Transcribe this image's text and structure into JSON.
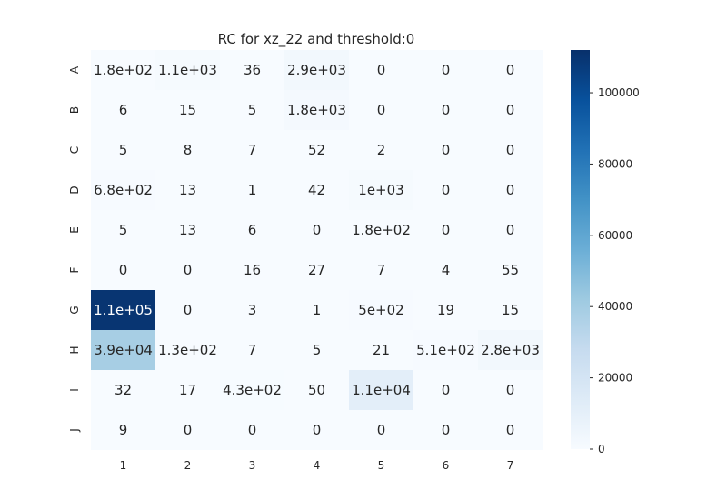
{
  "chart_data": {
    "type": "heatmap",
    "title": "RC  for xz_22 and threshold:0",
    "x_categories": [
      "1",
      "2",
      "3",
      "4",
      "5",
      "6",
      "7"
    ],
    "y_categories": [
      "A",
      "B",
      "C",
      "D",
      "E",
      "F",
      "G",
      "H",
      "I",
      "J"
    ],
    "values": [
      [
        180,
        1100,
        36,
        2900,
        0,
        0,
        0
      ],
      [
        6,
        15,
        5,
        1800,
        0,
        0,
        0
      ],
      [
        5,
        8,
        7,
        52,
        2,
        0,
        0
      ],
      [
        680,
        13,
        1,
        42,
        1000,
        0,
        0
      ],
      [
        5,
        13,
        6,
        0,
        180,
        0,
        0
      ],
      [
        0,
        0,
        16,
        27,
        7,
        4,
        55
      ],
      [
        110000,
        0,
        3,
        1,
        500,
        19,
        15
      ],
      [
        39000,
        130,
        7,
        5,
        21,
        510,
        2800
      ],
      [
        32,
        17,
        430,
        50,
        11000,
        0,
        0
      ],
      [
        9,
        0,
        0,
        0,
        0,
        0,
        0
      ]
    ],
    "annotations": [
      [
        "1.8e+02",
        "1.1e+03",
        "36",
        "2.9e+03",
        "0",
        "0",
        "0"
      ],
      [
        "6",
        "15",
        "5",
        "1.8e+03",
        "0",
        "0",
        "0"
      ],
      [
        "5",
        "8",
        "7",
        "52",
        "2",
        "0",
        "0"
      ],
      [
        "6.8e+02",
        "13",
        "1",
        "42",
        "1e+03",
        "0",
        "0"
      ],
      [
        "5",
        "13",
        "6",
        "0",
        "1.8e+02",
        "0",
        "0"
      ],
      [
        "0",
        "0",
        "16",
        "27",
        "7",
        "4",
        "55"
      ],
      [
        "1.1e+05",
        "0",
        "3",
        "1",
        "5e+02",
        "19",
        "15"
      ],
      [
        "3.9e+04",
        "1.3e+02",
        "7",
        "5",
        "21",
        "5.1e+02",
        "2.8e+03"
      ],
      [
        "32",
        "17",
        "4.3e+02",
        "50",
        "1.1e+04",
        "0",
        "0"
      ],
      [
        "9",
        "0",
        "0",
        "0",
        "0",
        "0",
        "0"
      ]
    ],
    "colormap": "Blues",
    "vmin": 0,
    "vmax": 112000,
    "colorbar": {
      "ticks": [
        0,
        20000,
        40000,
        60000,
        80000,
        100000
      ],
      "tick_labels": [
        "0",
        "20000",
        "40000",
        "60000",
        "80000",
        "100000"
      ]
    },
    "grid": false
  }
}
